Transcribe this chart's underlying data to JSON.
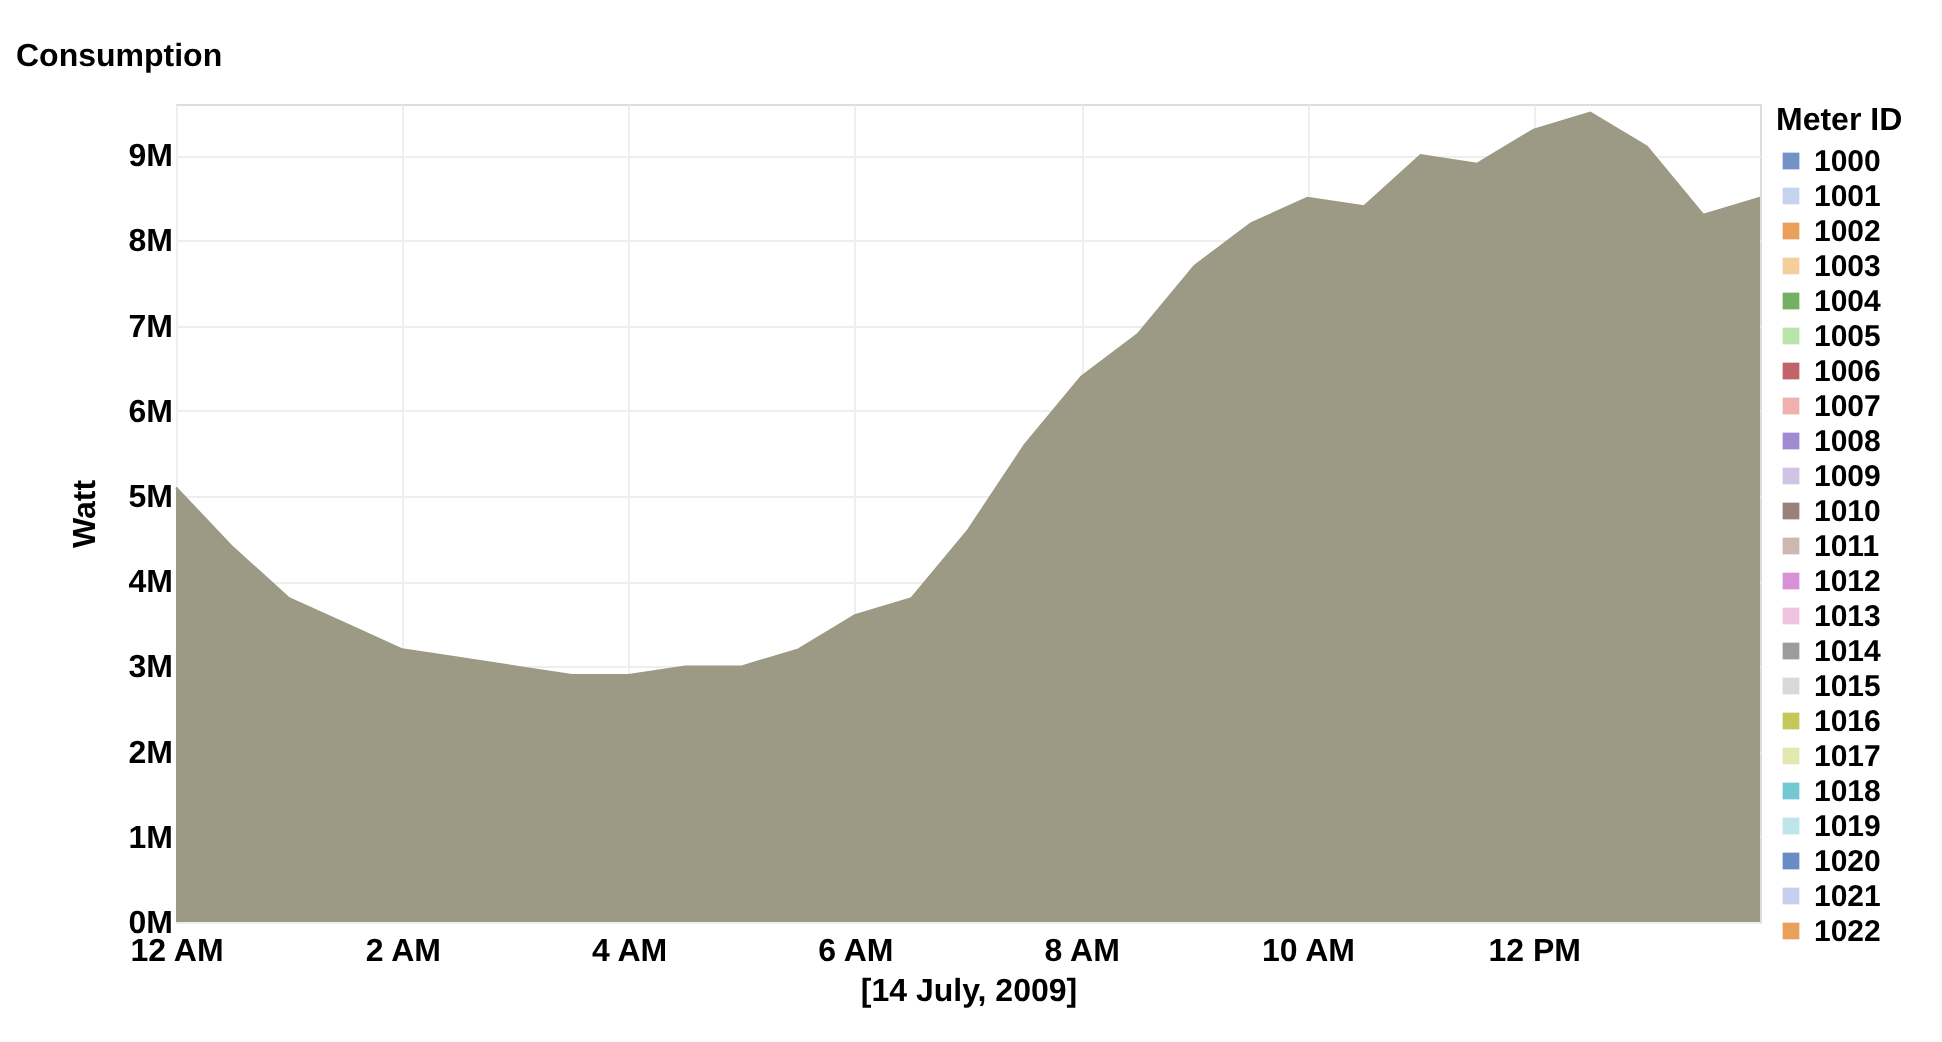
{
  "chart_data": {
    "type": "area",
    "title": "Consumption",
    "xlabel": "[14 July, 2009]",
    "ylabel": "Watt",
    "legend_title": "Meter ID",
    "x": [
      "2009-07-14T00:00",
      "2009-07-14T00:30",
      "2009-07-14T01:00",
      "2009-07-14T01:30",
      "2009-07-14T02:00",
      "2009-07-14T02:30",
      "2009-07-14T03:00",
      "2009-07-14T03:30",
      "2009-07-14T04:00",
      "2009-07-14T04:30",
      "2009-07-14T05:00",
      "2009-07-14T05:30",
      "2009-07-14T06:00",
      "2009-07-14T06:30",
      "2009-07-14T07:00",
      "2009-07-14T07:30",
      "2009-07-14T08:00",
      "2009-07-14T08:30",
      "2009-07-14T09:00",
      "2009-07-14T09:30",
      "2009-07-14T10:00",
      "2009-07-14T10:30",
      "2009-07-14T11:00",
      "2009-07-14T11:30",
      "2009-07-14T12:00",
      "2009-07-14T12:30",
      "2009-07-14T13:00",
      "2009-07-14T13:30",
      "2009-07-14T14:00"
    ],
    "xlim": [
      "2009-07-14T00:00",
      "2009-07-14T14:00"
    ],
    "xticks": [
      {
        "value": "2009-07-14T00:00",
        "label": "12 AM"
      },
      {
        "value": "2009-07-14T02:00",
        "label": "2 AM"
      },
      {
        "value": "2009-07-14T04:00",
        "label": "4 AM"
      },
      {
        "value": "2009-07-14T06:00",
        "label": "6 AM"
      },
      {
        "value": "2009-07-14T08:00",
        "label": "8 AM"
      },
      {
        "value": "2009-07-14T10:00",
        "label": "10 AM"
      },
      {
        "value": "2009-07-14T12:00",
        "label": "12 PM"
      }
    ],
    "ylim": [
      0,
      9600000
    ],
    "yticks": [
      {
        "value": 0,
        "label": "0M"
      },
      {
        "value": 1000000,
        "label": "1M"
      },
      {
        "value": 2000000,
        "label": "2M"
      },
      {
        "value": 3000000,
        "label": "3M"
      },
      {
        "value": 4000000,
        "label": "4M"
      },
      {
        "value": 5000000,
        "label": "5M"
      },
      {
        "value": 6000000,
        "label": "6M"
      },
      {
        "value": 7000000,
        "label": "7M"
      },
      {
        "value": 8000000,
        "label": "8M"
      },
      {
        "value": 9000000,
        "label": "9M"
      }
    ],
    "grid": true,
    "legend": "right",
    "series": [
      {
        "color": "#9c9a84",
        "values": [
          5100000,
          4400000,
          3800000,
          3500000,
          3200000,
          3100000,
          3000000,
          2900000,
          2900000,
          3000000,
          3000000,
          3200000,
          3600000,
          3800000,
          4600000,
          5600000,
          6400000,
          6900000,
          7700000,
          8200000,
          8500000,
          8400000,
          9000000,
          8900000,
          9300000,
          9500000,
          9100000,
          8300000,
          8500000
        ]
      },
      {
        "name": "1000",
        "color": "#7193c8",
        "values": [
          null,
          null,
          null,
          null,
          null,
          null,
          null,
          null,
          null,
          null,
          null,
          null,
          null,
          null,
          null,
          null,
          null,
          null,
          null,
          null,
          null,
          null,
          null,
          null,
          null,
          null,
          null,
          null,
          null
        ]
      },
      {
        "name": "1001",
        "color": "#c6d3ee",
        "values": [
          null,
          null,
          null,
          null,
          null,
          null,
          null,
          null,
          null,
          null,
          null,
          null,
          null,
          null,
          null,
          null,
          null,
          null,
          null,
          null,
          null,
          null,
          null,
          null,
          null,
          null,
          null,
          null,
          null
        ]
      },
      {
        "name": "1002",
        "color": "#e8a05a",
        "values": [
          null,
          null,
          null,
          null,
          null,
          null,
          null,
          null,
          null,
          null,
          null,
          null,
          null,
          null,
          null,
          null,
          null,
          null,
          null,
          null,
          null,
          null,
          null,
          null,
          null,
          null,
          null,
          null,
          null
        ]
      },
      {
        "name": "1003",
        "color": "#f4cf9c",
        "values": [
          null,
          null,
          null,
          null,
          null,
          null,
          null,
          null,
          null,
          null,
          null,
          null,
          null,
          null,
          null,
          null,
          null,
          null,
          null,
          null,
          null,
          null,
          null,
          null,
          null,
          null,
          null,
          null,
          null
        ]
      },
      {
        "name": "1004",
        "color": "#72b062",
        "values": [
          null,
          null,
          null,
          null,
          null,
          null,
          null,
          null,
          null,
          null,
          null,
          null,
          null,
          null,
          null,
          null,
          null,
          null,
          null,
          null,
          null,
          null,
          null,
          null,
          null,
          null,
          null,
          null,
          null
        ]
      },
      {
        "name": "1005",
        "color": "#b9e6a8",
        "values": [
          null,
          null,
          null,
          null,
          null,
          null,
          null,
          null,
          null,
          null,
          null,
          null,
          null,
          null,
          null,
          null,
          null,
          null,
          null,
          null,
          null,
          null,
          null,
          null,
          null,
          null,
          null,
          null,
          null
        ]
      },
      {
        "name": "1006",
        "color": "#c0646a",
        "values": [
          null,
          null,
          null,
          null,
          null,
          null,
          null,
          null,
          null,
          null,
          null,
          null,
          null,
          null,
          null,
          null,
          null,
          null,
          null,
          null,
          null,
          null,
          null,
          null,
          null,
          null,
          null,
          null,
          null
        ]
      },
      {
        "name": "1007",
        "color": "#f0b0b0",
        "values": [
          null,
          null,
          null,
          null,
          null,
          null,
          null,
          null,
          null,
          null,
          null,
          null,
          null,
          null,
          null,
          null,
          null,
          null,
          null,
          null,
          null,
          null,
          null,
          null,
          null,
          null,
          null,
          null,
          null
        ]
      },
      {
        "name": "1008",
        "color": "#a08ad0",
        "values": [
          null,
          null,
          null,
          null,
          null,
          null,
          null,
          null,
          null,
          null,
          null,
          null,
          null,
          null,
          null,
          null,
          null,
          null,
          null,
          null,
          null,
          null,
          null,
          null,
          null,
          null,
          null,
          null,
          null
        ]
      },
      {
        "name": "1009",
        "color": "#cfc4e4",
        "values": [
          null,
          null,
          null,
          null,
          null,
          null,
          null,
          null,
          null,
          null,
          null,
          null,
          null,
          null,
          null,
          null,
          null,
          null,
          null,
          null,
          null,
          null,
          null,
          null,
          null,
          null,
          null,
          null,
          null
        ]
      },
      {
        "name": "1010",
        "color": "#9a8078",
        "values": [
          null,
          null,
          null,
          null,
          null,
          null,
          null,
          null,
          null,
          null,
          null,
          null,
          null,
          null,
          null,
          null,
          null,
          null,
          null,
          null,
          null,
          null,
          null,
          null,
          null,
          null,
          null,
          null,
          null
        ]
      },
      {
        "name": "1011",
        "color": "#cdb8b0",
        "values": [
          null,
          null,
          null,
          null,
          null,
          null,
          null,
          null,
          null,
          null,
          null,
          null,
          null,
          null,
          null,
          null,
          null,
          null,
          null,
          null,
          null,
          null,
          null,
          null,
          null,
          null,
          null,
          null,
          null
        ]
      },
      {
        "name": "1012",
        "color": "#d890d8",
        "values": [
          null,
          null,
          null,
          null,
          null,
          null,
          null,
          null,
          null,
          null,
          null,
          null,
          null,
          null,
          null,
          null,
          null,
          null,
          null,
          null,
          null,
          null,
          null,
          null,
          null,
          null,
          null,
          null,
          null
        ]
      },
      {
        "name": "1013",
        "color": "#f0c4de",
        "values": [
          null,
          null,
          null,
          null,
          null,
          null,
          null,
          null,
          null,
          null,
          null,
          null,
          null,
          null,
          null,
          null,
          null,
          null,
          null,
          null,
          null,
          null,
          null,
          null,
          null,
          null,
          null,
          null,
          null
        ]
      },
      {
        "name": "1014",
        "color": "#9c9c9c",
        "values": [
          null,
          null,
          null,
          null,
          null,
          null,
          null,
          null,
          null,
          null,
          null,
          null,
          null,
          null,
          null,
          null,
          null,
          null,
          null,
          null,
          null,
          null,
          null,
          null,
          null,
          null,
          null,
          null,
          null
        ]
      },
      {
        "name": "1015",
        "color": "#d8d8d8",
        "values": [
          null,
          null,
          null,
          null,
          null,
          null,
          null,
          null,
          null,
          null,
          null,
          null,
          null,
          null,
          null,
          null,
          null,
          null,
          null,
          null,
          null,
          null,
          null,
          null,
          null,
          null,
          null,
          null,
          null
        ]
      },
      {
        "name": "1016",
        "color": "#c4c85a",
        "values": [
          null,
          null,
          null,
          null,
          null,
          null,
          null,
          null,
          null,
          null,
          null,
          null,
          null,
          null,
          null,
          null,
          null,
          null,
          null,
          null,
          null,
          null,
          null,
          null,
          null,
          null,
          null,
          null,
          null
        ]
      },
      {
        "name": "1017",
        "color": "#e2e8b0",
        "values": [
          null,
          null,
          null,
          null,
          null,
          null,
          null,
          null,
          null,
          null,
          null,
          null,
          null,
          null,
          null,
          null,
          null,
          null,
          null,
          null,
          null,
          null,
          null,
          null,
          null,
          null,
          null,
          null,
          null
        ]
      },
      {
        "name": "1018",
        "color": "#74c8d4",
        "values": [
          null,
          null,
          null,
          null,
          null,
          null,
          null,
          null,
          null,
          null,
          null,
          null,
          null,
          null,
          null,
          null,
          null,
          null,
          null,
          null,
          null,
          null,
          null,
          null,
          null,
          null,
          null,
          null,
          null
        ]
      },
      {
        "name": "1019",
        "color": "#c0e4ec",
        "values": [
          null,
          null,
          null,
          null,
          null,
          null,
          null,
          null,
          null,
          null,
          null,
          null,
          null,
          null,
          null,
          null,
          null,
          null,
          null,
          null,
          null,
          null,
          null,
          null,
          null,
          null,
          null,
          null,
          null
        ]
      },
      {
        "name": "1020",
        "color": "#6a8cc4",
        "values": [
          null,
          null,
          null,
          null,
          null,
          null,
          null,
          null,
          null,
          null,
          null,
          null,
          null,
          null,
          null,
          null,
          null,
          null,
          null,
          null,
          null,
          null,
          null,
          null,
          null,
          null,
          null,
          null,
          null
        ]
      },
      {
        "name": "1021",
        "color": "#c4d0ee",
        "values": [
          null,
          null,
          null,
          null,
          null,
          null,
          null,
          null,
          null,
          null,
          null,
          null,
          null,
          null,
          null,
          null,
          null,
          null,
          null,
          null,
          null,
          null,
          null,
          null,
          null,
          null,
          null,
          null,
          null
        ]
      },
      {
        "name": "1022",
        "color": "#e8a05a",
        "values": [
          null,
          null,
          null,
          null,
          null,
          null,
          null,
          null,
          null,
          null,
          null,
          null,
          null,
          null,
          null,
          null,
          null,
          null,
          null,
          null,
          null,
          null,
          null,
          null,
          null,
          null,
          null,
          null,
          null
        ]
      }
    ]
  }
}
